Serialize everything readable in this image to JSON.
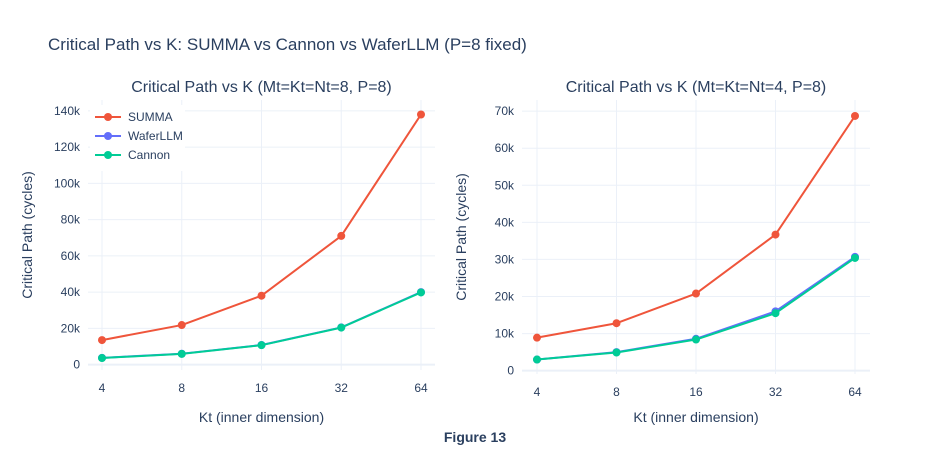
{
  "figure": {
    "title": "Critical Path vs K: SUMMA vs Cannon vs WaferLLM (P=8 fixed)",
    "caption": "Figure 13"
  },
  "chart_data": [
    {
      "type": "line",
      "title": "Critical Path vs K (Mt=Kt=Nt=8, P=8)",
      "xlabel": "Kt (inner dimension)",
      "ylabel": "Critical Path (cycles)",
      "x_scale": "log2",
      "categories": [
        "4",
        "8",
        "16",
        "32",
        "64"
      ],
      "x": [
        4,
        8,
        16,
        32,
        64
      ],
      "ylim": [
        -3000,
        146000
      ],
      "yticks": [
        0,
        20000,
        40000,
        60000,
        80000,
        100000,
        120000,
        140000
      ],
      "ytick_labels": [
        "0",
        "20k",
        "40k",
        "60k",
        "80k",
        "100k",
        "120k",
        "140k"
      ],
      "legend": "top-left",
      "series": [
        {
          "name": "SUMMA",
          "color": "#EF553B",
          "values": [
            13500,
            21800,
            38000,
            71000,
            138000
          ]
        },
        {
          "name": "WaferLLM",
          "color": "#636EFA",
          "values": [
            3700,
            6000,
            10800,
            20500,
            40000
          ]
        },
        {
          "name": "Cannon",
          "color": "#00CC96",
          "values": [
            3600,
            5900,
            10700,
            20400,
            39800
          ]
        }
      ]
    },
    {
      "type": "line",
      "title": "Critical Path vs K (Mt=Kt=Nt=4, P=8)",
      "xlabel": "Kt (inner dimension)",
      "ylabel": "Critical Path (cycles)",
      "x_scale": "log2",
      "categories": [
        "4",
        "8",
        "16",
        "32",
        "64"
      ],
      "x": [
        4,
        8,
        16,
        32,
        64
      ],
      "ylim": [
        -900,
        73000
      ],
      "yticks": [
        0,
        10000,
        20000,
        30000,
        40000,
        50000,
        60000,
        70000
      ],
      "ytick_labels": [
        "0",
        "10k",
        "20k",
        "30k",
        "40k",
        "50k",
        "60k",
        "70k"
      ],
      "series": [
        {
          "name": "SUMMA",
          "color": "#EF553B",
          "values": [
            8900,
            12800,
            20800,
            36700,
            68700
          ]
        },
        {
          "name": "WaferLLM",
          "color": "#636EFA",
          "values": [
            3000,
            5000,
            8600,
            16000,
            30700
          ]
        },
        {
          "name": "Cannon",
          "color": "#00CC96",
          "values": [
            3000,
            4900,
            8400,
            15500,
            30400
          ]
        }
      ]
    }
  ]
}
